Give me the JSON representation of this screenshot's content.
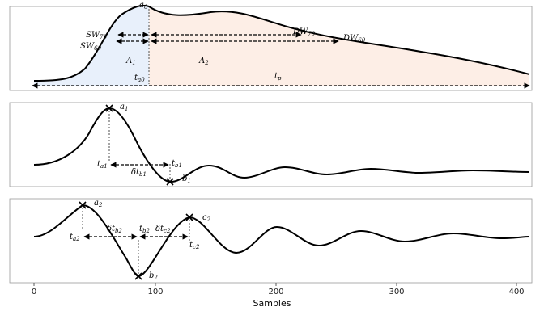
{
  "panel1": {
    "labels": {
      "a0": {
        "main": "a",
        "sub": "0"
      },
      "sw70": {
        "main": "SW",
        "sub": "70"
      },
      "sw60": {
        "main": "SW",
        "sub": "60"
      },
      "dw70": {
        "main": "DW",
        "sub": "70"
      },
      "dw60": {
        "main": "DW",
        "sub": "60"
      },
      "A1": {
        "main": "A",
        "sub": "1"
      },
      "A2": {
        "main": "A",
        "sub": "2"
      },
      "ta0": {
        "main": "t",
        "sub": "a0"
      },
      "tp": {
        "main": "t",
        "sub": "p"
      }
    },
    "colors": {
      "area_left": "#e8f0fb",
      "area_right": "#fdeee6"
    }
  },
  "panel2": {
    "labels": {
      "a1": {
        "main": "a",
        "sub": "1"
      },
      "b1": {
        "main": "b",
        "sub": "1"
      },
      "ta1": {
        "main": "t",
        "sub": "a1"
      },
      "tb1": {
        "main": "t",
        "sub": "b1"
      },
      "dtb1": {
        "main": "δt",
        "sub": "b1"
      }
    }
  },
  "panel3": {
    "labels": {
      "a2": {
        "main": "a",
        "sub": "2"
      },
      "b2": {
        "main": "b",
        "sub": "2"
      },
      "c2": {
        "main": "c",
        "sub": "2"
      },
      "ta2": {
        "main": "t",
        "sub": "a2"
      },
      "tb2": {
        "main": "t",
        "sub": "b2"
      },
      "tc2": {
        "main": "t",
        "sub": "c2"
      },
      "dtb2": {
        "main": "δt",
        "sub": "b2"
      },
      "dtc2": {
        "main": "δt",
        "sub": "c2"
      }
    }
  },
  "x_axis": {
    "title": "Samples",
    "ticks": [
      "0",
      "100",
      "200",
      "300",
      "400"
    ]
  }
}
